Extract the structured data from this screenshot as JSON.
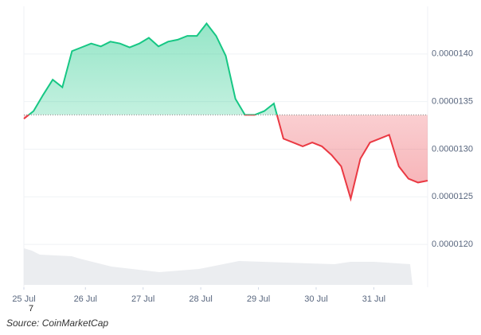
{
  "chart_data": {
    "type": "line",
    "series": [
      {
        "name": "Price",
        "values": [
          1.332e-05,
          1.34e-05,
          1.357e-05,
          1.373e-05,
          1.365e-05,
          1.403e-05,
          1.407e-05,
          1.411e-05,
          1.408e-05,
          1.413e-05,
          1.411e-05,
          1.407e-05,
          1.411e-05,
          1.417e-05,
          1.408e-05,
          1.413e-05,
          1.415e-05,
          1.419e-05,
          1.419e-05,
          1.432e-05,
          1.419e-05,
          1.398e-05,
          1.353e-05,
          1.336e-05,
          1.336e-05,
          1.34e-05,
          1.348e-05,
          1.311e-05,
          1.307e-05,
          1.303e-05,
          1.307e-05,
          1.303e-05,
          1.294e-05,
          1.282e-05,
          1.248e-05,
          1.29e-05,
          1.307e-05,
          1.311e-05,
          1.315e-05,
          1.282e-05,
          1.269e-05,
          1.265e-05,
          1.267e-05
        ]
      }
    ],
    "baseline": 1.336e-05,
    "up_color": "#16c784",
    "down_color": "#ea3943",
    "xlim": [
      0,
      42
    ],
    "xticks": [
      {
        "value": 0,
        "label": "25 Jul"
      },
      {
        "value": 6.4,
        "label": "26 Jul"
      },
      {
        "value": 12.4,
        "label": "27 Jul"
      },
      {
        "value": 18.4,
        "label": "28 Jul"
      },
      {
        "value": 24.4,
        "label": "29 Jul"
      },
      {
        "value": 30.4,
        "label": "30 Jul"
      },
      {
        "value": 36.4,
        "label": "31 Jul"
      }
    ],
    "ylim": [
      1.155e-05,
      1.45e-05
    ],
    "yticks": [
      {
        "value": 1.4e-05,
        "label": "0.0000140"
      },
      {
        "value": 1.35e-05,
        "label": "0.0000135"
      },
      {
        "value": 1.3e-05,
        "label": "0.0000130"
      },
      {
        "value": 1.25e-05,
        "label": "0.0000125"
      },
      {
        "value": 1.2e-05,
        "label": "0.0000120"
      }
    ],
    "grid": true,
    "footnote_mark": "7",
    "source": "Source: CoinMarketCap"
  }
}
